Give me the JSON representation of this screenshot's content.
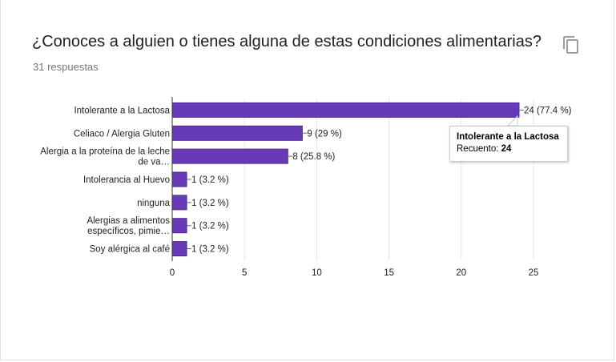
{
  "header": {
    "title": "¿Conoces a alguien o tienes alguna de estas condiciones alimentarias?",
    "responses": "31 respuestas",
    "copy_icon": "copy-icon"
  },
  "tooltip": {
    "title": "Intolerante a la Lactosa",
    "label": "Recuento:",
    "value": "24"
  },
  "colors": {
    "bar": "#673ab7",
    "bar_border": "#4a2c8a",
    "grid": "#e6e6e6",
    "axis": "#333333"
  },
  "chart_data": {
    "type": "bar",
    "orientation": "horizontal",
    "categories": [
      [
        "Intolerante a la Lactosa"
      ],
      [
        "Celiaco / Alergia Gluten"
      ],
      [
        "Alergia a la proteína de la leche",
        "de va…"
      ],
      [
        "Intolerancia al Huevo"
      ],
      [
        "ninguna"
      ],
      [
        "Alergias a alimentos",
        "específicos, pimie…"
      ],
      [
        "Soy alérgica al café"
      ]
    ],
    "values": [
      24,
      9,
      8,
      1,
      1,
      1,
      1
    ],
    "value_labels": [
      "24 (77.4 %)",
      "9 (29 %)",
      "8 (25.8 %)",
      "1 (3.2 %)",
      "1 (3.2 %)",
      "1 (3.2 %)",
      "1 (3.2 %)"
    ],
    "xticks": [
      0,
      5,
      10,
      15,
      20,
      25
    ],
    "xlim": [
      0,
      25
    ],
    "grid": true,
    "legend": "none"
  }
}
